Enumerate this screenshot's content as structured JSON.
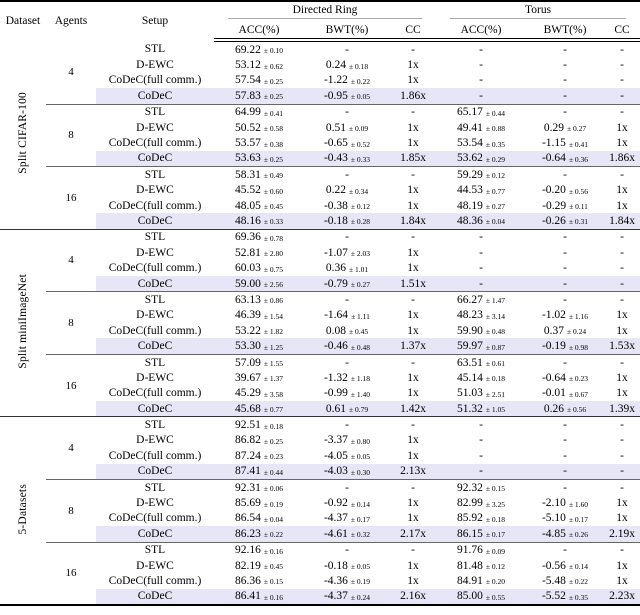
{
  "colors": {
    "highlight_row": "#e6e6f7",
    "rule_dark": "#000000",
    "rule_mid": "#333333",
    "rule_light": "#aaaaaa"
  },
  "header": {
    "dataset": "Dataset",
    "agents": "Agents",
    "setup": "Setup",
    "group1": "Directed Ring",
    "group2": "Torus",
    "acc": "ACC(%)",
    "bwt": "BWT(%)",
    "cc": "CC"
  },
  "groups": [
    {
      "dataset": "Split CIFAR-100",
      "blocks": [
        {
          "agents": "4",
          "rows": [
            {
              "setup": "STL",
              "highlight": false,
              "cells": [
                "69.22 ± 0.10",
                "-",
                "-",
                "-",
                "-",
                "-"
              ]
            },
            {
              "setup": "D-EWC",
              "highlight": false,
              "cells": [
                "53.12 ± 0.62",
                "0.24 ± 0.18",
                "1x",
                "-",
                "-",
                "-"
              ]
            },
            {
              "setup": "CoDeC(full comm.)",
              "highlight": false,
              "cells": [
                "57.54 ± 0.25",
                "-1.22 ± 0.22",
                "1x",
                "-",
                "-",
                "-"
              ]
            },
            {
              "setup": "CoDeC",
              "highlight": true,
              "cells": [
                "57.83 ± 0.25",
                "-0.95 ± 0.05",
                "1.86x",
                "-",
                "-",
                "-"
              ]
            }
          ]
        },
        {
          "agents": "8",
          "rows": [
            {
              "setup": "STL",
              "highlight": false,
              "cells": [
                "64.99 ± 0.41",
                "-",
                "-",
                "65.17 ± 0.44",
                "-",
                "-"
              ]
            },
            {
              "setup": "D-EWC",
              "highlight": false,
              "cells": [
                "50.52 ± 0.58",
                "0.51 ± 0.09",
                "1x",
                "49.41 ± 0.88",
                "0.29 ± 0.27",
                "1x"
              ]
            },
            {
              "setup": "CoDeC(full comm.)",
              "highlight": false,
              "cells": [
                "53.57 ± 0.38",
                "-0.65 ± 0.52",
                "1x",
                "53.54 ± 0.35",
                "-1.15 ± 0.41",
                "1x"
              ]
            },
            {
              "setup": "CoDeC",
              "highlight": true,
              "cells": [
                "53.63 ± 0.25",
                "-0.43 ± 0.33",
                "1.85x",
                "53.62 ± 0.29",
                "-0.64 ± 0.36",
                "1.86x"
              ]
            }
          ]
        },
        {
          "agents": "16",
          "rows": [
            {
              "setup": "STL",
              "highlight": false,
              "cells": [
                "58.31 ± 0.49",
                "-",
                "-",
                "59.29 ± 0.12",
                "-",
                "-"
              ]
            },
            {
              "setup": "D-EWC",
              "highlight": false,
              "cells": [
                "45.52 ± 0.60",
                "0.22 ± 0.34",
                "1x",
                "44.53 ± 0.77",
                "-0.20 ± 0.56",
                "1x"
              ]
            },
            {
              "setup": "CoDeC(full comm.)",
              "highlight": false,
              "cells": [
                "48.05 ± 0.45",
                "-0.38 ± 0.12",
                "1x",
                "48.19 ± 0.27",
                "-0.29 ± 0.11",
                "1x"
              ]
            },
            {
              "setup": "CoDeC",
              "highlight": true,
              "cells": [
                "48.16 ± 0.33",
                "-0.18 ± 0.28",
                "1.84x",
                "48.36 ± 0.04",
                "-0.26 ± 0.31",
                "1.84x"
              ]
            }
          ]
        }
      ]
    },
    {
      "dataset": "Split miniImageNet",
      "blocks": [
        {
          "agents": "4",
          "rows": [
            {
              "setup": "STL",
              "highlight": false,
              "cells": [
                "69.36 ± 0.78",
                "-",
                "-",
                "-",
                "-",
                "-"
              ]
            },
            {
              "setup": "D-EWC",
              "highlight": false,
              "cells": [
                "52.81 ± 2.80",
                "-1.07 ± 2.03",
                "1x",
                "-",
                "-",
                "-"
              ]
            },
            {
              "setup": "CoDeC(full comm.)",
              "highlight": false,
              "cells": [
                "60.03 ± 0.75",
                "0.36 ± 1.01",
                "1x",
                "-",
                "-",
                "-"
              ]
            },
            {
              "setup": "CoDeC",
              "highlight": true,
              "cells": [
                "59.00 ± 2.56",
                "-0.79 ± 0.27",
                "1.51x",
                "-",
                "-",
                "-"
              ]
            }
          ]
        },
        {
          "agents": "8",
          "rows": [
            {
              "setup": "STL",
              "highlight": false,
              "cells": [
                "63.13 ± 0.86",
                "-",
                "-",
                "66.27 ± 1.47",
                "-",
                "-"
              ]
            },
            {
              "setup": "D-EWC",
              "highlight": false,
              "cells": [
                "46.39 ± 1.54",
                "-1.64 ± 1.11",
                "1x",
                "48.23 ± 3.14",
                "-1.02 ± 1.16",
                "1x"
              ]
            },
            {
              "setup": "CoDeC(full comm.)",
              "highlight": false,
              "cells": [
                "53.22 ± 1.82",
                "0.08 ± 0.45",
                "1x",
                "59.90 ± 0.48",
                "0.37 ± 0.24",
                "1x"
              ]
            },
            {
              "setup": "CoDeC",
              "highlight": true,
              "cells": [
                "53.30 ± 1.25",
                "-0.46 ± 0.48",
                "1.37x",
                "59.97 ± 0.87",
                "-0.19 ± 0.98",
                "1.53x"
              ]
            }
          ]
        },
        {
          "agents": "16",
          "rows": [
            {
              "setup": "STL",
              "highlight": false,
              "cells": [
                "57.09 ± 1.55",
                "-",
                "-",
                "63.51 ± 0.61",
                "-",
                "-"
              ]
            },
            {
              "setup": "D-EWC",
              "highlight": false,
              "cells": [
                "39.67 ± 1.37",
                "-1.32 ± 1.18",
                "1x",
                "45.14 ± 0.18",
                "-0.64 ± 0.23",
                "1x"
              ]
            },
            {
              "setup": "CoDeC(full comm.)",
              "highlight": false,
              "cells": [
                "45.29 ± 3.58",
                "-0.99 ± 1.40",
                "1x",
                "51.03 ± 2.51",
                "-0.01 ± 0.67",
                "1x"
              ]
            },
            {
              "setup": "CoDeC",
              "highlight": true,
              "cells": [
                "45.68 ± 0.77",
                "0.61 ± 0.79",
                "1.42x",
                "51.32 ± 1.05",
                "0.26 ± 0.56",
                "1.39x"
              ]
            }
          ]
        }
      ]
    },
    {
      "dataset": "5-Datasets",
      "blocks": [
        {
          "agents": "4",
          "rows": [
            {
              "setup": "STL",
              "highlight": false,
              "cells": [
                "92.51 ± 0.18",
                "-",
                "-",
                "-",
                "-",
                "-"
              ]
            },
            {
              "setup": "D-EWC",
              "highlight": false,
              "cells": [
                "86.82 ± 0.25",
                "-3.37 ± 0.80",
                "1x",
                "-",
                "-",
                "-"
              ]
            },
            {
              "setup": "CoDeC(full comm.)",
              "highlight": false,
              "cells": [
                "87.24 ± 0.23",
                "-4.05 ± 0.05",
                "1x",
                "-",
                "-",
                "-"
              ]
            },
            {
              "setup": "CoDeC",
              "highlight": true,
              "cells": [
                "87.41 ± 0.44",
                "-4.03 ± 0.30",
                "2.13x",
                "-",
                "-",
                "-"
              ]
            }
          ]
        },
        {
          "agents": "8",
          "rows": [
            {
              "setup": "STL",
              "highlight": false,
              "cells": [
                "92.31 ± 0.06",
                "-",
                "-",
                "92.32 ± 0.15",
                "-",
                "-"
              ]
            },
            {
              "setup": "D-EWC",
              "highlight": false,
              "cells": [
                "85.69 ± 0.19",
                "-0.92 ± 0.14",
                "1x",
                "82.99 ± 3.25",
                "-2.10 ± 1.60",
                "1x"
              ]
            },
            {
              "setup": "CoDeC(full comm.)",
              "highlight": false,
              "cells": [
                "86.54 ± 0.04",
                "-4.37 ± 0.17",
                "1x",
                "85.92 ± 0.18",
                "-5.10 ± 0.17",
                "1x"
              ]
            },
            {
              "setup": "CoDeC",
              "highlight": true,
              "cells": [
                "86.23 ± 0.22",
                "-4.61 ± 0.32",
                "2.17x",
                "86.15 ± 0.17",
                "-4.85 ± 0.26",
                "2.19x"
              ]
            }
          ]
        },
        {
          "agents": "16",
          "rows": [
            {
              "setup": "STL",
              "highlight": false,
              "cells": [
                "92.16 ± 0.16",
                "-",
                "-",
                "91.76 ± 0.09",
                "-",
                "-"
              ]
            },
            {
              "setup": "D-EWC",
              "highlight": false,
              "cells": [
                "82.19 ± 0.45",
                "-0.18 ± 0.05",
                "1x",
                "81.48 ± 0.12",
                "-0.56 ± 0.14",
                "1x"
              ]
            },
            {
              "setup": "CoDeC(full comm.)",
              "highlight": false,
              "cells": [
                "86.36 ± 0.15",
                "-4.36 ± 0.19",
                "1x",
                "84.91 ± 0.20",
                "-5.48 ± 0.22",
                "1x"
              ]
            },
            {
              "setup": "CoDeC",
              "highlight": true,
              "cells": [
                "86.41 ± 0.16",
                "-4.37 ± 0.24",
                "2.16x",
                "85.00 ± 0.55",
                "-5.52 ± 0.35",
                "2.23x"
              ]
            }
          ]
        }
      ]
    }
  ]
}
